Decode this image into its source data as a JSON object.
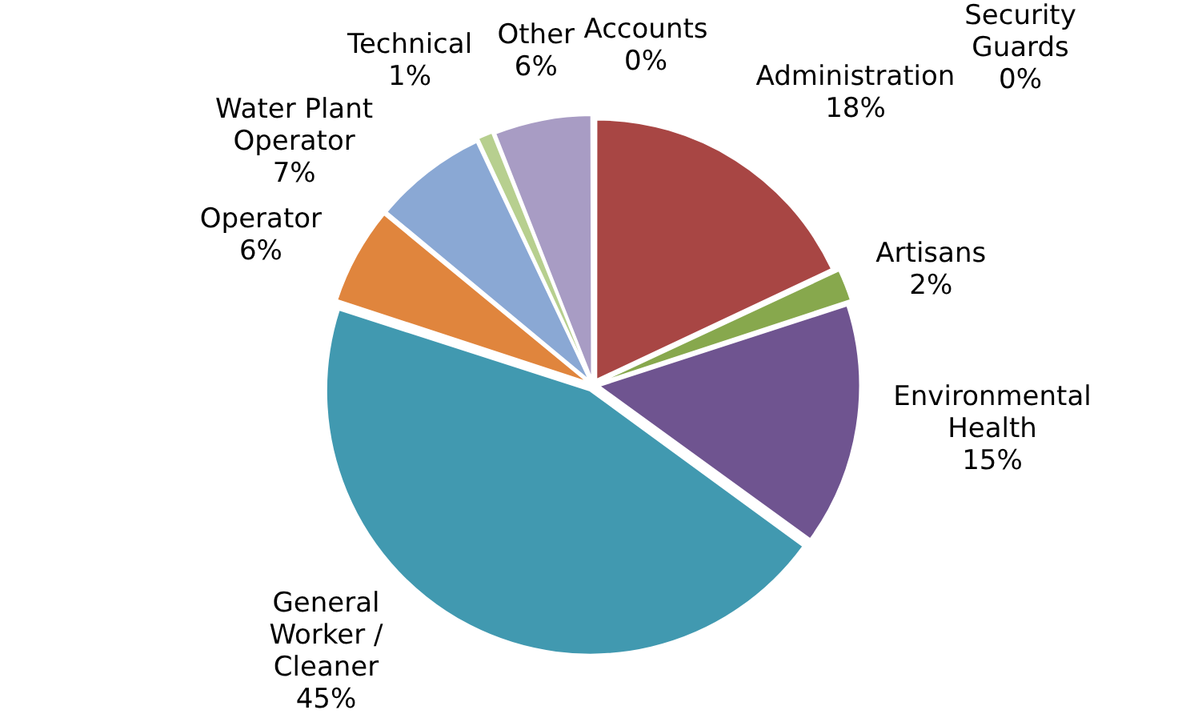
{
  "chart_data": {
    "type": "pie",
    "categories": [
      "Accounts",
      "Administration",
      "Artisans",
      "Environmental Health",
      "General Worker / Cleaner",
      "Operator",
      "Water Plant Operator",
      "Technical",
      "Other",
      "Security Guards"
    ],
    "values": [
      0,
      18,
      2,
      15,
      45,
      6,
      7,
      1,
      6,
      0
    ],
    "value_labels": [
      "0%",
      "18%",
      "2%",
      "15%",
      "45%",
      "6%",
      "7%",
      "1%",
      "6%",
      "0%"
    ],
    "colors": [
      "#4f81bd",
      "#a84644",
      "#87a84d",
      "#6f5490",
      "#4199b0",
      "#e0853d",
      "#8aa8d4",
      "#b7cf8f",
      "#a89cc4",
      "#c0504d"
    ],
    "legend": false
  }
}
